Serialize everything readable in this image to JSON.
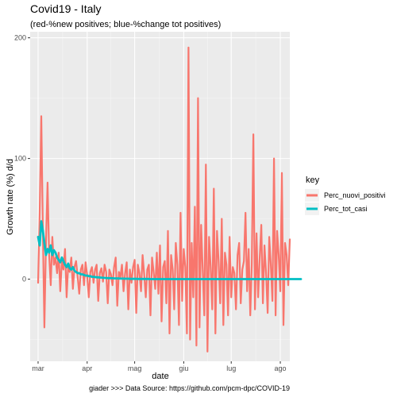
{
  "chart_data": {
    "type": "line",
    "title": "Covid19 - Italy",
    "subtitle": "(red-%new positives; blue-%change tot positives)",
    "xlabel": "date",
    "ylabel": "Growth rate (%) d/d",
    "caption": "giader >>>  Data Source: https://github.com/pcm-dpc/COVID-19",
    "legend_title": "key",
    "legend_position": "right",
    "grid": true,
    "x_ticks": [
      "mar",
      "apr",
      "mag",
      "giu",
      "lug",
      "ago"
    ],
    "ylim": [
      -68,
      205
    ],
    "y_ticks": [
      0,
      100,
      200
    ],
    "x_start_day": -5,
    "x_end_day": 159,
    "series": [
      {
        "name": "Perc_nuovi_positivi",
        "color": "#F8766D",
        "day_offset": 0,
        "values": [
          -3,
          55,
          135,
          40,
          -40,
          30,
          80,
          20,
          -5,
          35,
          12,
          18,
          5,
          22,
          -10,
          15,
          8,
          25,
          -15,
          12,
          6,
          18,
          -8,
          10,
          15,
          2,
          -12,
          8,
          12,
          -5,
          14,
          3,
          -15,
          6,
          10,
          -3,
          8,
          12,
          -18,
          5,
          9,
          -2,
          12,
          6,
          -20,
          8,
          4,
          -5,
          10,
          18,
          -22,
          6,
          2,
          12,
          -10,
          5,
          14,
          -25,
          8,
          -3,
          10,
          16,
          -28,
          12,
          5,
          -10,
          20,
          4,
          -15,
          8,
          12,
          -30,
          18,
          6,
          -8,
          22,
          -12,
          28,
          -35,
          10,
          15,
          -20,
          40,
          -45,
          20,
          8,
          -25,
          30,
          12,
          -38,
          55,
          -18,
          25,
          10,
          -45,
          192,
          -50,
          30,
          -15,
          60,
          -55,
          150,
          -40,
          45,
          8,
          -30,
          95,
          -60,
          35,
          10,
          -25,
          75,
          -45,
          40,
          15,
          -20,
          50,
          -38,
          22,
          12,
          -30,
          35,
          -15,
          10,
          5,
          -25,
          20,
          30,
          -20,
          8,
          15,
          55,
          -10,
          25,
          -30,
          12,
          120,
          -25,
          38,
          -15,
          18,
          45,
          -20,
          28,
          5,
          -28,
          35,
          12,
          -18,
          100,
          -30,
          40,
          20,
          -10,
          88,
          -38,
          30,
          20,
          -5,
          33
        ]
      },
      {
        "name": "Perc_tot_casi",
        "color": "#00BFC4",
        "day_offset": 0,
        "values": [
          35,
          28,
          48,
          40,
          30,
          20,
          25,
          22,
          28,
          20,
          24,
          22,
          18,
          16,
          14,
          18,
          15,
          12,
          10,
          13,
          9,
          8,
          10,
          7,
          6,
          5,
          5,
          4,
          4,
          3.5,
          3,
          3,
          2.5,
          2.5,
          2,
          2,
          1.8,
          1.6,
          1.5,
          1.4,
          1.3,
          1.2,
          1.1,
          1.0,
          0.9,
          0.9,
          0.8,
          0.8,
          0.7,
          0.7,
          0.6,
          0.6,
          0.5,
          0.5,
          0.5,
          0.4,
          0.4,
          0.4,
          0.3,
          0.3,
          0.3,
          0.3,
          0.3,
          0.2,
          0.2,
          0.2,
          0.2,
          0.2,
          0.2,
          0.2,
          0.2,
          0.1,
          0.1,
          0.1,
          0.1,
          0.1,
          0.1,
          0.1,
          0.1,
          0.1,
          0.1,
          0.1,
          0.1,
          0.1,
          0.1,
          0.1,
          0.1,
          0.1,
          0.1,
          0.1,
          0.1,
          0.1,
          0.1,
          0.1,
          0.1,
          0.1,
          0.1,
          0.1,
          0.1,
          0.1,
          0.1,
          0.1,
          0.1,
          0.1,
          0.1,
          0.1,
          0.1,
          0.1,
          0.1,
          0.1,
          0.1,
          0.1,
          0.1,
          0.1,
          0.1,
          0.1,
          0.1,
          0.1,
          0.1,
          0.1,
          0.1,
          0.1,
          0.1,
          0.1,
          0.1,
          0.1,
          0.1,
          0.1,
          0.1,
          0.1,
          0.1,
          0.1,
          0.1,
          0.1,
          0.1,
          0.1,
          0.1,
          0.1,
          0.1,
          0.1,
          0.1,
          0.1,
          0.1,
          0.1,
          0.1,
          0.1,
          0.1,
          0.1,
          0.1,
          0.1,
          0.1,
          0.1,
          0.1,
          0.1,
          0.1,
          0.1,
          0.1,
          0.1,
          0.1,
          0.1,
          0.1,
          0.1,
          0.1,
          0.1,
          0.1,
          0.1,
          0.1
        ]
      }
    ]
  }
}
